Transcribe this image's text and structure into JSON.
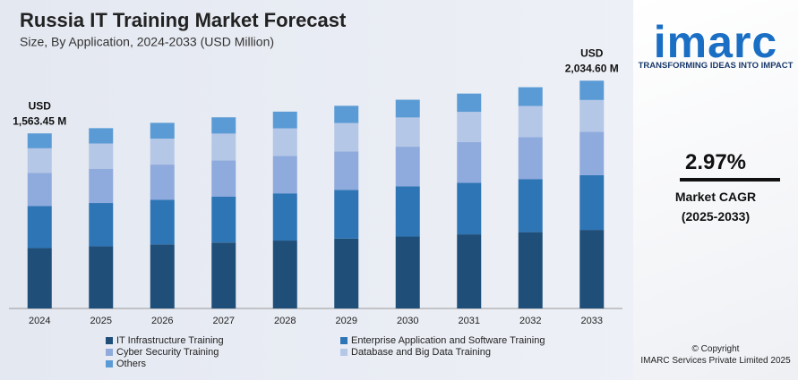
{
  "chart_data": {
    "type": "stacked-bar",
    "title": "Russia IT Training Market Forecast",
    "subtitle": "Size, By Application, 2024-2033 (USD Million)",
    "categories": [
      "2024",
      "2025",
      "2026",
      "2027",
      "2028",
      "2029",
      "2030",
      "2031",
      "2032",
      "2033"
    ],
    "series": [
      {
        "name": "IT Infrastructure Training",
        "color": "#1f4e79",
        "values": [
          539.4,
          555.5,
          572.0,
          588.9,
          606.5,
          624.5,
          643.1,
          662.1,
          681.7,
          701.9
        ]
      },
      {
        "name": "Enterprise Application and Software Training",
        "color": "#2e75b6",
        "values": [
          375.2,
          386.4,
          397.9,
          409.7,
          421.9,
          434.4,
          447.4,
          460.6,
          474.2,
          488.3
        ]
      },
      {
        "name": "Cyber Security Training",
        "color": "#8faadc",
        "values": [
          297.1,
          305.9,
          315.0,
          324.3,
          334.0,
          343.9,
          354.2,
          364.6,
          375.4,
          386.6
        ]
      },
      {
        "name": "Database and Big Data Training",
        "color": "#b4c7e7",
        "values": [
          218.9,
          225.4,
          232.1,
          239.0,
          246.1,
          253.4,
          261.0,
          268.7,
          276.6,
          284.8
        ]
      },
      {
        "name": "Others",
        "color": "#5b9bd5",
        "values": [
          132.9,
          136.9,
          140.9,
          145.1,
          149.4,
          153.9,
          158.4,
          163.1,
          168.0,
          172.9
        ]
      }
    ],
    "totals": [
      {
        "category": "2024",
        "value": 1563.45,
        "unit": "USD",
        "label": "1,563.45 M"
      },
      {
        "category": "2033",
        "value": 2034.6,
        "unit": "USD",
        "label": "2,034.60 M"
      }
    ],
    "ylim": [
      0,
      2100
    ]
  },
  "sidebar": {
    "logo": "imarc",
    "tagline": "TRANSFORMING IDEAS INTO IMPACT",
    "cagr": "2.97%",
    "cagr_label": "Market CAGR",
    "cagr_period": "(2025-2033)",
    "copyright": "© Copyright",
    "company": "IMARC Services Private Limited 2025"
  }
}
